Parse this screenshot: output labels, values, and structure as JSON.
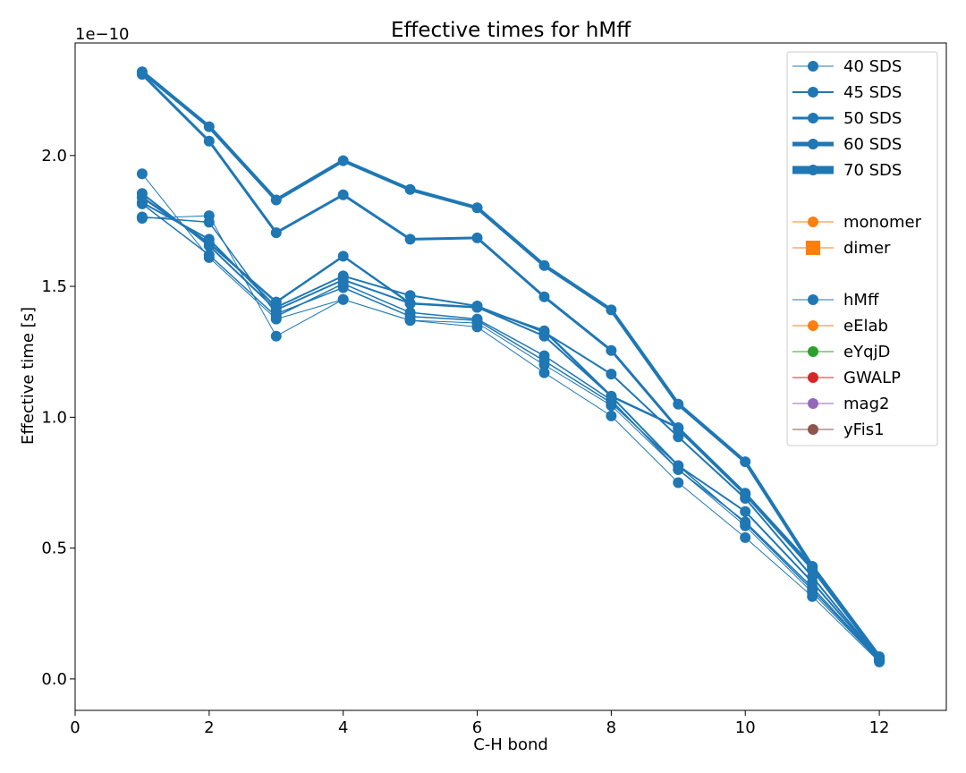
{
  "colors": {
    "series": "#1f77b4",
    "orange": "#ff7f0e",
    "green": "#2ca02c",
    "red": "#d62728",
    "purple": "#9467bd",
    "brown": "#8c564b"
  },
  "chart_data": {
    "type": "line",
    "title": "Effective times for hMff",
    "xlabel": "C-H bond",
    "ylabel": "Effective time [s]",
    "y_offset_label": "1e−10",
    "xlim": [
      0,
      13
    ],
    "ylim": [
      -0.12,
      2.43
    ],
    "x_ticks": [
      0,
      2,
      4,
      6,
      8,
      10,
      12
    ],
    "y_ticks": [
      0.0,
      0.5,
      1.0,
      1.5,
      2.0
    ],
    "x_tick_labels": [
      "0",
      "2",
      "4",
      "6",
      "8",
      "10",
      "12"
    ],
    "y_tick_labels": [
      "0.0",
      "0.5",
      "1.0",
      "1.5",
      "2.0"
    ],
    "grid": false,
    "legend_position": "top-right",
    "x": [
      1,
      2,
      3,
      4,
      5,
      6,
      7,
      8,
      9,
      10,
      11,
      12
    ],
    "series": [
      {
        "width": 1,
        "values": [
          1.76,
          1.77,
          1.31,
          1.45,
          1.37,
          1.345,
          1.17,
          1.005,
          0.75,
          0.54,
          0.315,
          0.065
        ]
      },
      {
        "width": 1,
        "values": [
          1.93,
          1.61,
          1.375,
          1.45,
          1.37,
          1.36,
          1.2,
          1.045,
          0.8,
          0.585,
          0.33,
          0.068
        ]
      },
      {
        "width": 1.5,
        "values": [
          1.765,
          1.745,
          1.395,
          1.495,
          1.385,
          1.37,
          1.215,
          1.055,
          0.815,
          0.595,
          0.34,
          0.07
        ]
      },
      {
        "width": 1.5,
        "values": [
          1.815,
          1.62,
          1.385,
          1.51,
          1.4,
          1.375,
          1.235,
          1.065,
          0.8,
          0.6,
          0.35,
          0.072
        ]
      },
      {
        "width": 2,
        "values": [
          1.855,
          1.655,
          1.41,
          1.525,
          1.435,
          1.42,
          1.31,
          1.08,
          0.815,
          0.64,
          0.37,
          0.074
        ]
      },
      {
        "width": 2,
        "values": [
          1.82,
          1.68,
          1.42,
          1.54,
          1.465,
          1.425,
          1.325,
          1.165,
          0.925,
          0.69,
          0.39,
          0.076
        ]
      },
      {
        "width": 2.5,
        "values": [
          1.84,
          1.665,
          1.44,
          1.615,
          1.435,
          1.42,
          1.33,
          1.08,
          0.96,
          0.71,
          0.43,
          0.08
        ]
      },
      {
        "width": 3,
        "values": [
          2.31,
          2.055,
          1.705,
          1.85,
          1.68,
          1.685,
          1.46,
          1.255,
          0.955,
          0.705,
          0.42,
          0.082
        ]
      },
      {
        "width": 4,
        "values": [
          2.32,
          2.11,
          1.83,
          1.98,
          1.87,
          1.8,
          1.58,
          1.41,
          1.05,
          0.83,
          0.43,
          0.085
        ]
      }
    ],
    "legend": [
      {
        "label": "40 SDS",
        "color": "#1f77b4",
        "width": 1,
        "marker": "circle"
      },
      {
        "label": "45 SDS",
        "color": "#1f77b4",
        "width": 2,
        "marker": "circle"
      },
      {
        "label": "50 SDS",
        "color": "#1f77b4",
        "width": 3,
        "marker": "circle"
      },
      {
        "label": "60 SDS",
        "color": "#1f77b4",
        "width": 5,
        "marker": "circle"
      },
      {
        "label": "70 SDS",
        "color": "#1f77b4",
        "width": 9,
        "marker": "circle"
      },
      {
        "label": "",
        "color": "",
        "width": 0,
        "marker": "none"
      },
      {
        "label": "monomer",
        "color": "#ff7f0e",
        "width": 1,
        "marker": "circle"
      },
      {
        "label": "dimer",
        "color": "#ff7f0e",
        "width": 1,
        "marker": "square"
      },
      {
        "label": "",
        "color": "",
        "width": 0,
        "marker": "none"
      },
      {
        "label": "hMff",
        "color": "#1f77b4",
        "width": 1,
        "marker": "circle"
      },
      {
        "label": "eElab",
        "color": "#ff7f0e",
        "width": 1,
        "marker": "circle"
      },
      {
        "label": "eYqjD",
        "color": "#2ca02c",
        "width": 1,
        "marker": "circle"
      },
      {
        "label": "GWALP",
        "color": "#d62728",
        "width": 1,
        "marker": "circle"
      },
      {
        "label": "mag2",
        "color": "#9467bd",
        "width": 1,
        "marker": "circle"
      },
      {
        "label": "yFis1",
        "color": "#8c564b",
        "width": 1,
        "marker": "circle"
      }
    ]
  }
}
